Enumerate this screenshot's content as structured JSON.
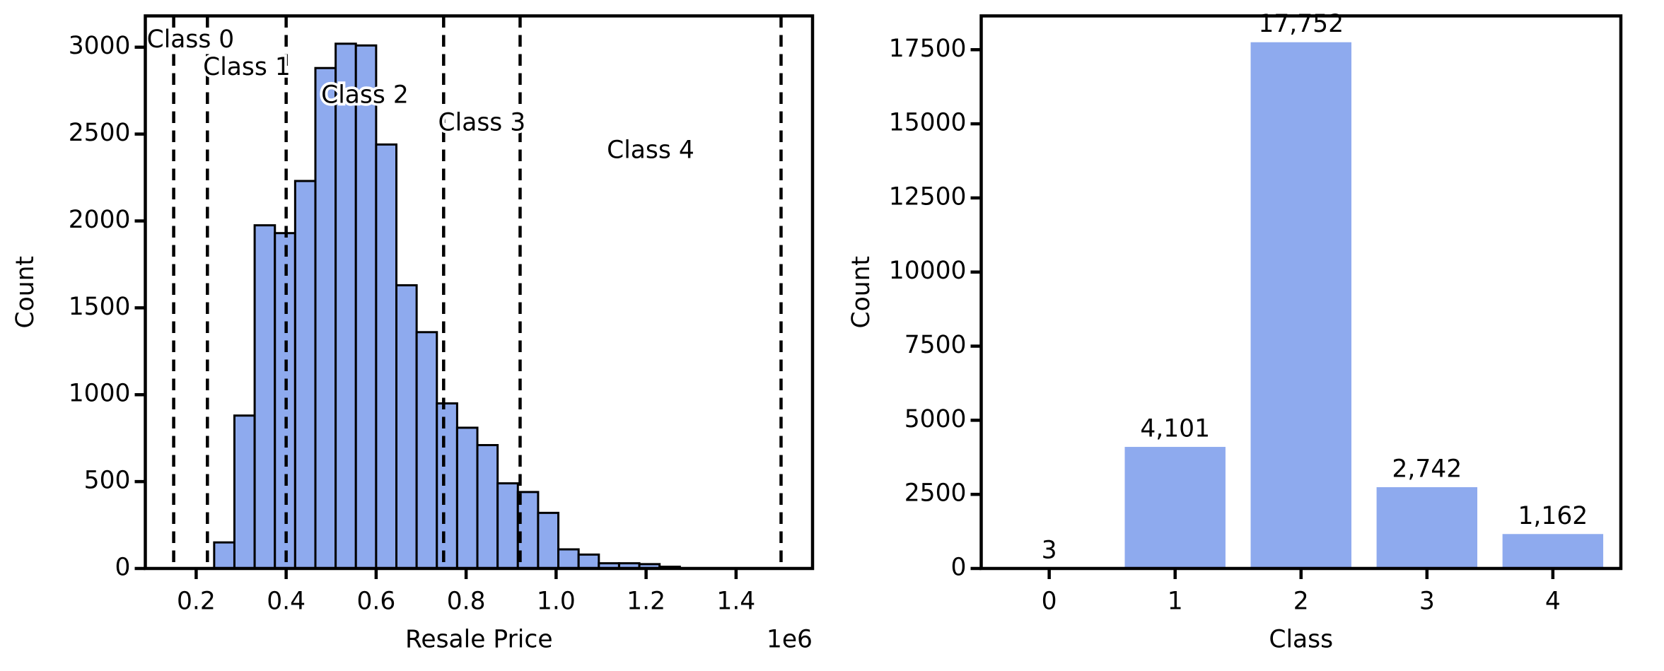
{
  "chart_data": [
    {
      "type": "histogram",
      "xlabel": "Resale Price",
      "ylabel": "Count",
      "x_offset_label": "1e6",
      "bins": [
        0.24,
        0.285,
        0.33,
        0.375,
        0.42,
        0.465,
        0.51,
        0.555,
        0.6,
        0.645,
        0.69,
        0.735,
        0.78,
        0.825,
        0.87,
        0.915,
        0.96,
        1.005,
        1.05,
        1.095,
        1.14,
        1.185,
        1.23,
        1.275
      ],
      "counts": [
        150,
        880,
        1975,
        1930,
        2230,
        2880,
        3020,
        3010,
        2440,
        1630,
        1360,
        950,
        810,
        710,
        490,
        440,
        320,
        110,
        80,
        30,
        30,
        25,
        10
      ],
      "color": "#8eaaee",
      "class_boundaries": [
        0.15,
        0.225,
        0.4,
        0.75,
        0.92,
        1.5
      ],
      "annotations": [
        "Class 0",
        "Class 1",
        "Class 2",
        "Class 3",
        "Class 4"
      ],
      "xlim": [
        0.087,
        1.57
      ],
      "ylim": [
        0,
        3180
      ],
      "xticks": [
        0.2,
        0.4,
        0.6,
        0.8,
        {
          "value": 1,
          "label": "1.0"
        },
        1.2,
        1.4
      ],
      "yticks": [
        0,
        500,
        1000,
        1500,
        2000,
        2500,
        3000
      ]
    },
    {
      "type": "bar",
      "xlabel": "Class",
      "ylabel": "Count",
      "categories": [
        "0",
        "1",
        "2",
        "3",
        "4"
      ],
      "values": [
        3,
        4101,
        17752,
        2742,
        1162
      ],
      "value_labels": [
        "3",
        "4,101",
        "17,752",
        "2,742",
        "1,162"
      ],
      "color": "#8eaaee",
      "ylim": [
        0,
        18640
      ],
      "yticks": [
        0,
        2500,
        5000,
        7500,
        10000,
        12500,
        15000,
        17500
      ]
    }
  ]
}
